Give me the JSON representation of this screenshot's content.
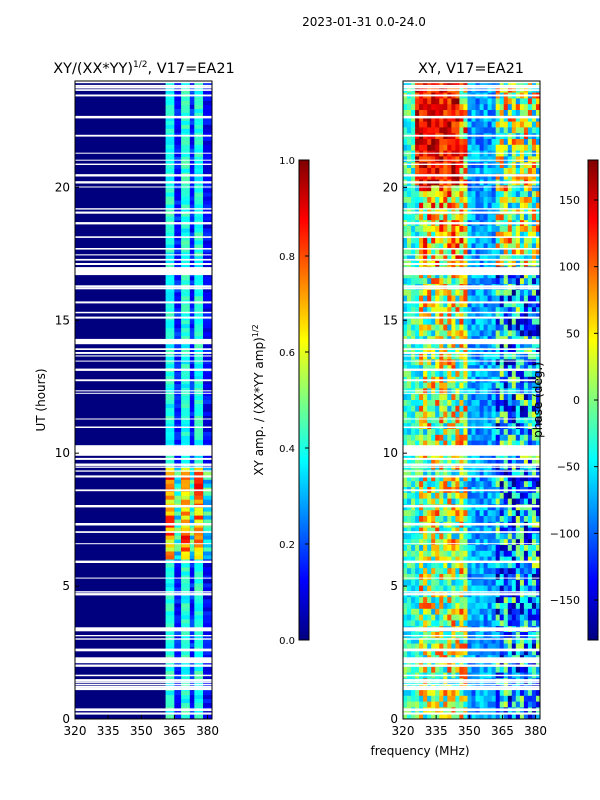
{
  "suptitle": "2023-01-31 0.0-24.0",
  "shared_xlabel": "frequency (MHz)",
  "colors": {
    "jet": [
      "#00007f",
      "#0000ff",
      "#007fff",
      "#00ffff",
      "#7fff7f",
      "#ffff00",
      "#ff7f00",
      "#ff0000",
      "#7f0000"
    ],
    "gap": "#ffffff",
    "frame": "#000000"
  },
  "chart_data": [
    {
      "type": "heatmap",
      "title_main": "XY/(XX*YY)",
      "title_exp": "1/2",
      "title_rest": ", V17=EA21",
      "xlabel": "",
      "ylabel": "UT (hours)",
      "xlim": [
        320,
        382
      ],
      "ylim": [
        0,
        24
      ],
      "xticks": [
        320,
        335,
        350,
        365,
        380
      ],
      "yticks": [
        0,
        5,
        10,
        15,
        20
      ],
      "colorbar": {
        "label_main": "XY amp. / (XX*YY amp)",
        "label_exp": "1/2",
        "range": [
          0.0,
          1.0
        ],
        "ticks": [
          "0.0",
          "0.2",
          "0.4",
          "0.6",
          "0.8",
          "1.0"
        ]
      },
      "bands": [
        {
          "freq_range": [
            320,
            361
          ],
          "level": 0.03
        },
        {
          "freq_range": [
            361,
            365
          ],
          "level": 0.4
        },
        {
          "freq_range": [
            365,
            368
          ],
          "level": 0.15
        },
        {
          "freq_range": [
            368,
            372
          ],
          "level": 0.4
        },
        {
          "freq_range": [
            372,
            374
          ],
          "level": 0.15
        },
        {
          "freq_range": [
            374,
            378
          ],
          "level": 0.4
        },
        {
          "freq_range": [
            378,
            382
          ],
          "level": 0.12
        }
      ],
      "bright_hours": [
        6.0,
        9.5
      ]
    },
    {
      "type": "heatmap",
      "title": "XY, V17=EA21",
      "xlabel": "frequency (MHz)",
      "ylabel": "",
      "xlim": [
        320,
        382
      ],
      "ylim": [
        0,
        24
      ],
      "xticks": [
        320,
        335,
        350,
        365,
        380
      ],
      "yticks": [
        0,
        5,
        10,
        15,
        20
      ],
      "colorbar": {
        "label": "phase (deg.)",
        "range": [
          -180,
          180
        ],
        "ticks": [
          "−150",
          "−100",
          "−50",
          "0",
          "50",
          "100",
          "150"
        ]
      }
    }
  ]
}
